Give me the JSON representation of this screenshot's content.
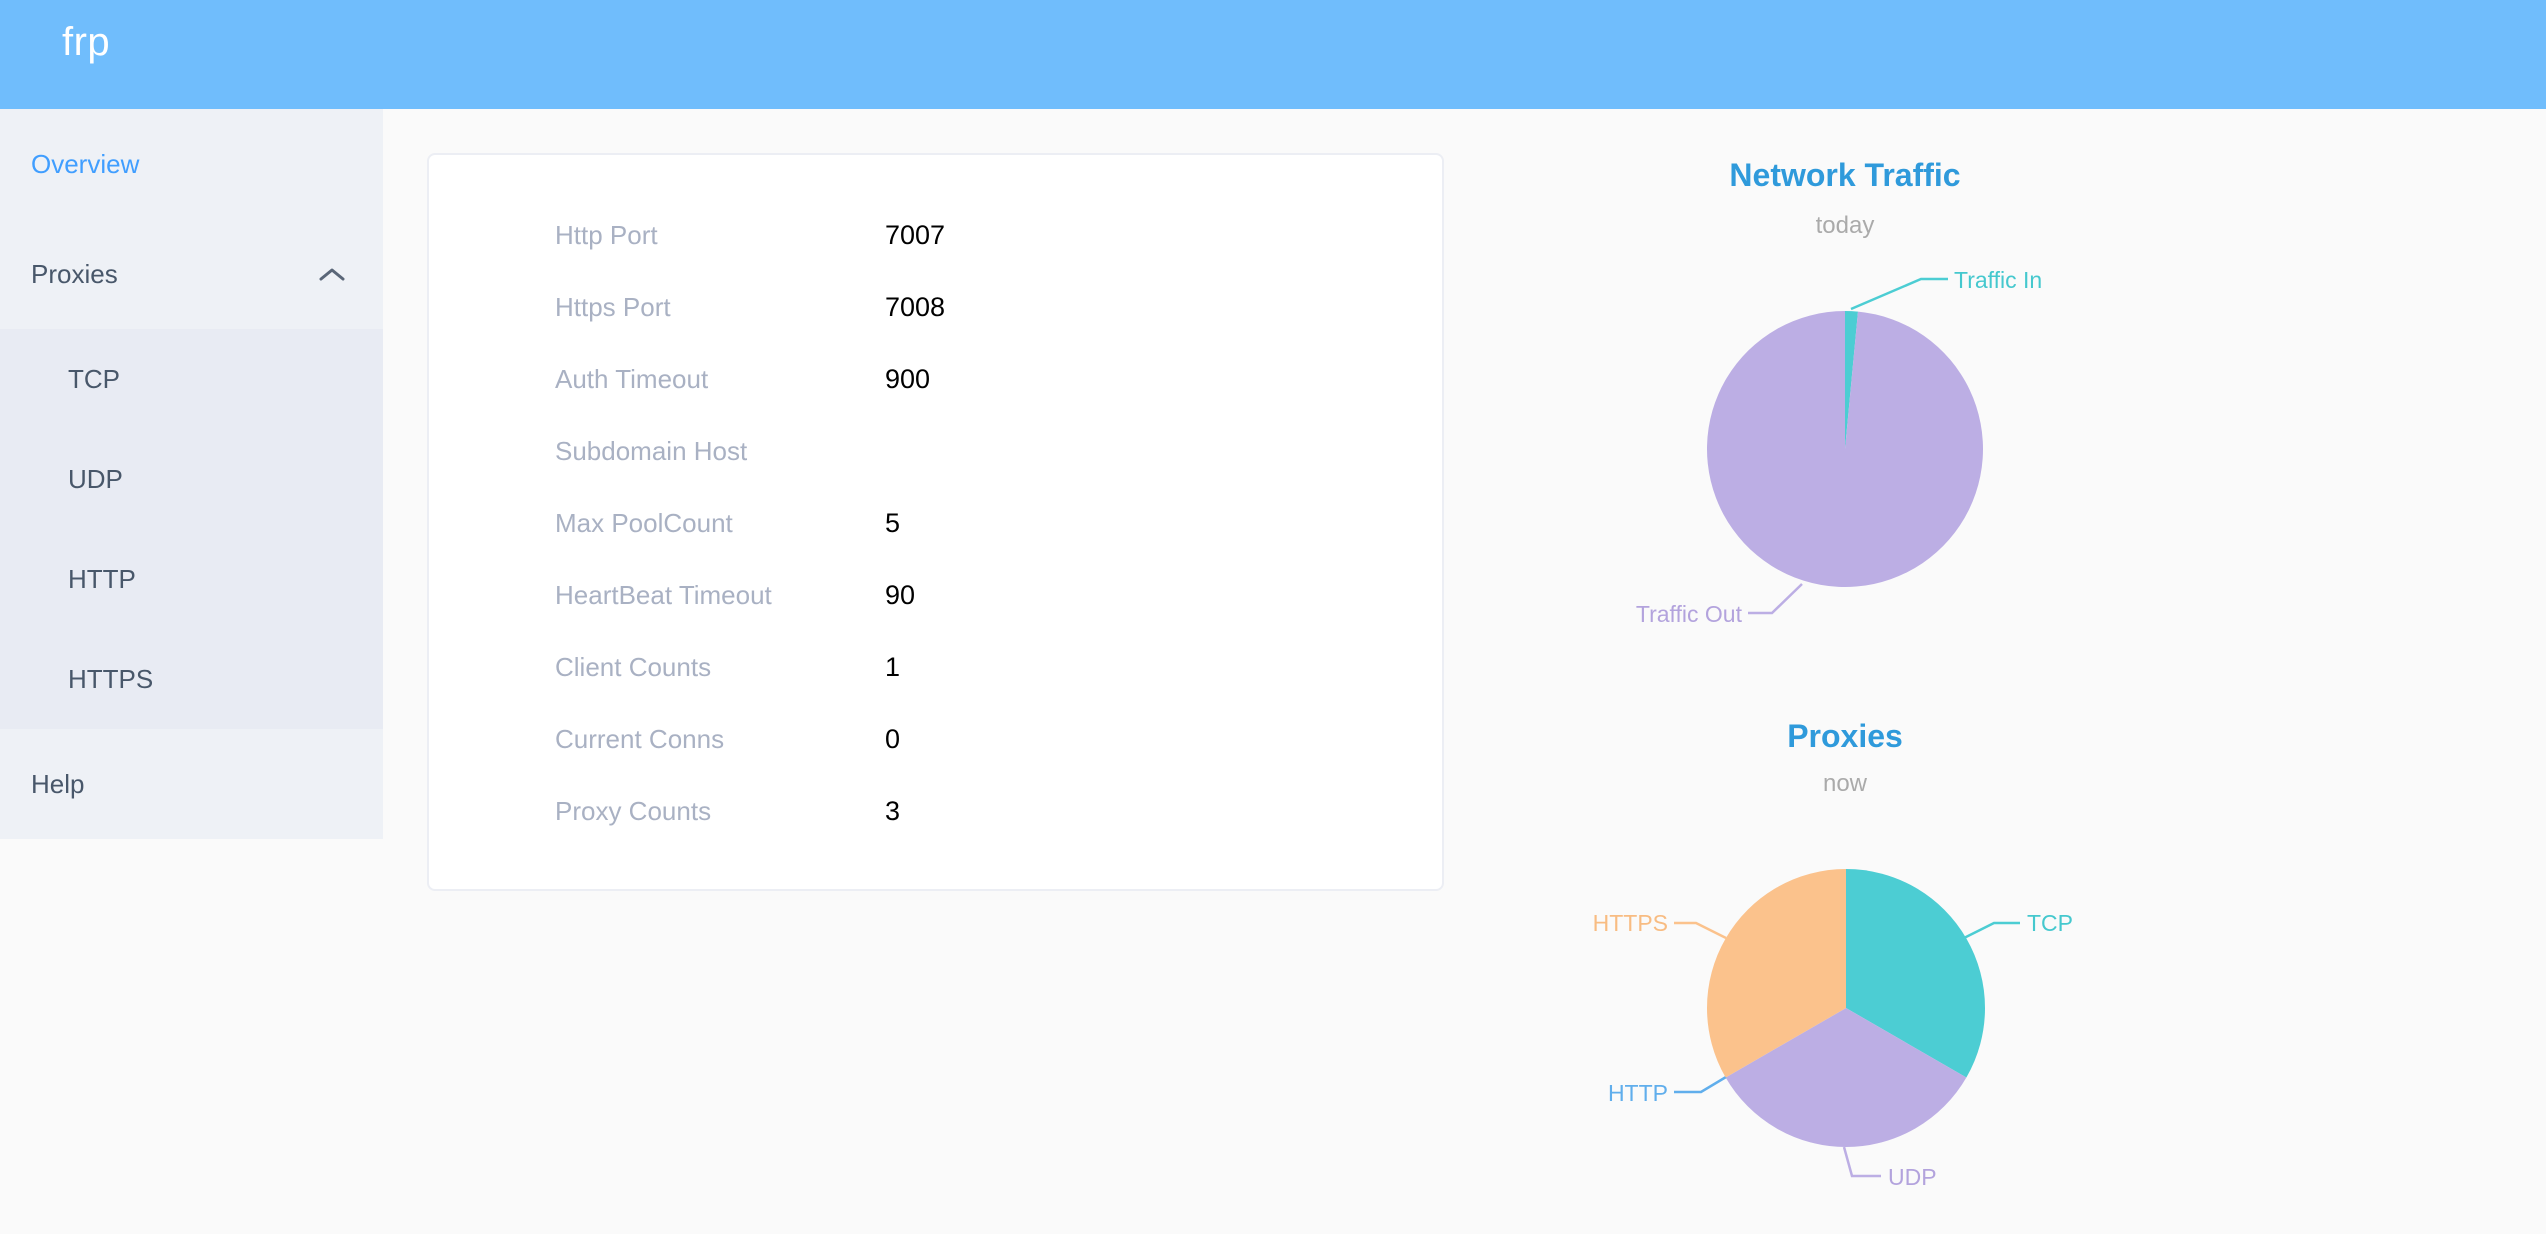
{
  "header": {
    "logo": "frp"
  },
  "sidebar": {
    "items": [
      {
        "label": "Overview",
        "active": true
      },
      {
        "label": "Proxies",
        "expanded": true,
        "children": [
          "TCP",
          "UDP",
          "HTTP",
          "HTTPS"
        ]
      },
      {
        "label": "Help"
      }
    ]
  },
  "overview_card": {
    "rows": [
      {
        "label": "Http Port",
        "value": "7007"
      },
      {
        "label": "Https Port",
        "value": "7008"
      },
      {
        "label": "Auth Timeout",
        "value": "900"
      },
      {
        "label": "Subdomain Host",
        "value": ""
      },
      {
        "label": "Max PoolCount",
        "value": "5"
      },
      {
        "label": "HeartBeat Timeout",
        "value": "90"
      },
      {
        "label": "Client Counts",
        "value": "1"
      },
      {
        "label": "Current Conns",
        "value": "0"
      },
      {
        "label": "Proxy Counts",
        "value": "3"
      }
    ]
  },
  "chart_data": [
    {
      "type": "pie",
      "title": "Network Traffic",
      "subtitle": "today",
      "legend_position": "outside-callout",
      "series": [
        {
          "name": "Traffic In",
          "value": 1.5,
          "unit": "percent-estimated",
          "color": "#4ccdd3",
          "label_color": "#45c8ce"
        },
        {
          "name": "Traffic Out",
          "value": 98.5,
          "unit": "percent-estimated",
          "color": "#bcaee4",
          "label_color": "#b3a3dd"
        }
      ]
    },
    {
      "type": "pie",
      "title": "Proxies",
      "subtitle": "now",
      "legend_position": "outside-callout",
      "series": [
        {
          "name": "TCP",
          "value": 1,
          "unit": "proxies",
          "color": "#4ccdd3",
          "label_color": "#45c8ce"
        },
        {
          "name": "UDP",
          "value": 1,
          "unit": "proxies",
          "color": "#bcaee4",
          "label_color": "#b3a3dd"
        },
        {
          "name": "HTTP",
          "value": 0,
          "unit": "proxies",
          "color": "#60aeec",
          "label_color": "#60aeec"
        },
        {
          "name": "HTTPS",
          "value": 1,
          "unit": "proxies",
          "color": "#fbc28c",
          "label_color": "#f8bc82"
        }
      ]
    }
  ],
  "colors": {
    "header_bg": "#70bdfc",
    "sidebar_bg": "#eef1f6",
    "submenu_bg": "#e8ebf3",
    "sidebar_text": "#48576a",
    "active_item": "#409eff",
    "chart_title": "#2f9adb",
    "muted_label": "#a9b1c3"
  }
}
